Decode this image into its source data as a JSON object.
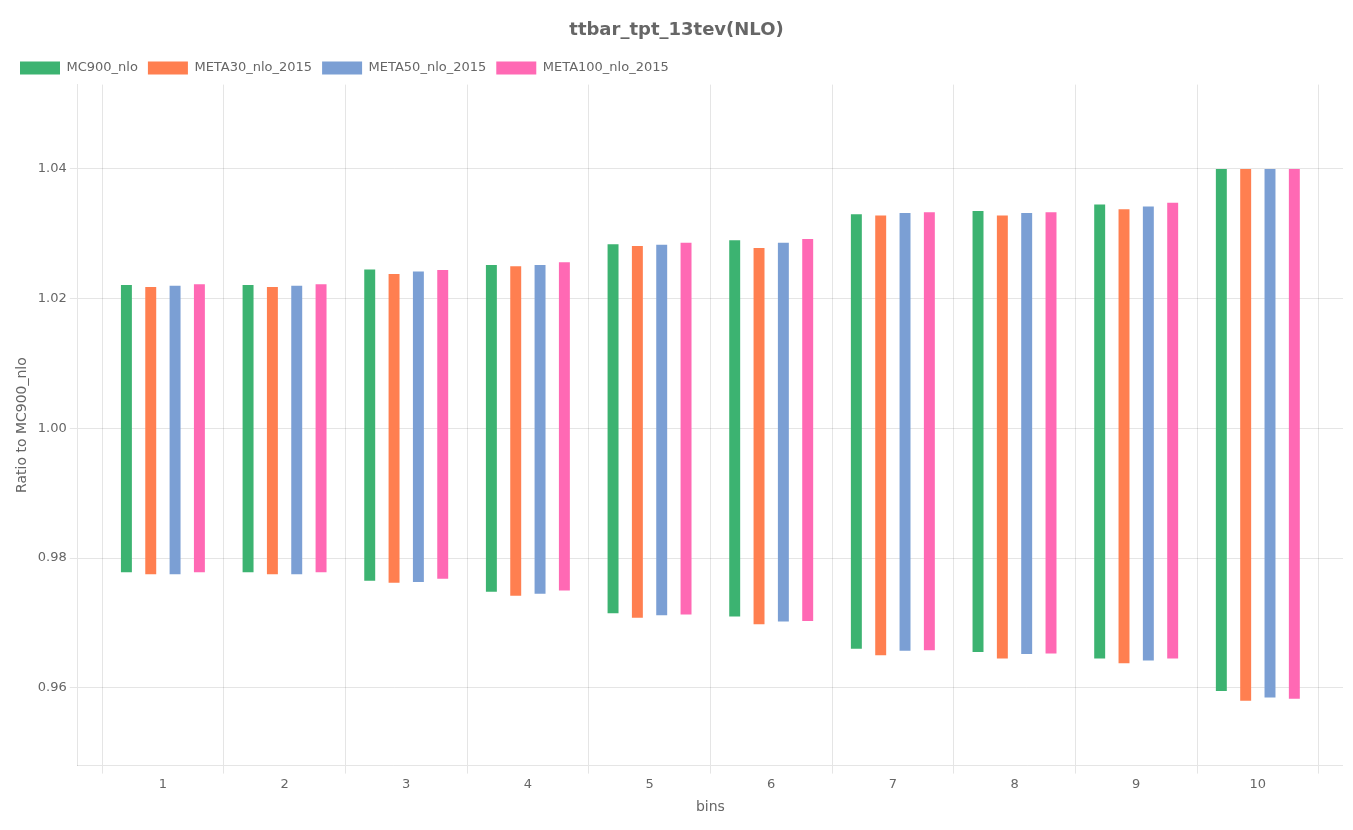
{
  "chart_data": {
    "type": "range",
    "title": "ttbar_tpt_13tev(NLO)",
    "xlabel": "bins",
    "ylabel": "Ratio to MC900_nlo",
    "x": [
      1,
      2,
      3,
      4,
      5,
      6,
      7,
      8,
      9,
      10
    ],
    "xlim": [
      0.3,
      10.7
    ],
    "xticks": [
      1,
      2,
      3,
      4,
      5,
      6,
      7,
      8,
      9,
      10
    ],
    "ylim": [
      0.948,
      1.053
    ],
    "yticks": [
      0.96,
      0.98,
      {
        "value": 1.0,
        "label": "1.00"
      },
      1.02,
      1.04
    ],
    "grid": true,
    "legend": "upper left",
    "series": [
      {
        "name": "MC900_nlo",
        "color": "#3cb371",
        "top": [
          1.0221,
          1.0221,
          1.0245,
          1.0252,
          1.0284,
          1.029,
          1.033,
          1.0335,
          1.0345,
          1.04
        ],
        "bottom": [
          0.9778,
          0.9778,
          0.9765,
          0.9748,
          0.9715,
          0.971,
          0.966,
          0.9655,
          0.9645,
          0.9595
        ]
      },
      {
        "name": "META30_nlo_2015",
        "color": "#ff7f50",
        "top": [
          1.0218,
          1.0218,
          1.0238,
          1.025,
          1.0281,
          1.0278,
          1.0328,
          1.0328,
          1.0338,
          1.04
        ],
        "bottom": [
          0.9775,
          0.9775,
          0.9762,
          0.9742,
          0.9708,
          0.9698,
          0.965,
          0.9645,
          0.9638,
          0.958
        ]
      },
      {
        "name": "META50_nlo_2015",
        "color": "#7b9fd4",
        "top": [
          1.022,
          1.022,
          1.0242,
          1.0252,
          1.0283,
          1.0286,
          1.0332,
          1.0332,
          1.0342,
          1.04
        ],
        "bottom": [
          0.9775,
          0.9775,
          0.9763,
          0.9745,
          0.9712,
          0.9702,
          0.9657,
          0.9652,
          0.9642,
          0.9585
        ]
      },
      {
        "name": "META100_nlo_2015",
        "color": "#ff69b4",
        "top": [
          1.0222,
          1.0222,
          1.0244,
          1.0256,
          1.0286,
          1.0292,
          1.0333,
          1.0333,
          1.0348,
          1.04
        ],
        "bottom": [
          0.9778,
          0.9778,
          0.9768,
          0.975,
          0.9713,
          0.9703,
          0.9658,
          0.9653,
          0.9645,
          0.9583
        ]
      }
    ]
  }
}
